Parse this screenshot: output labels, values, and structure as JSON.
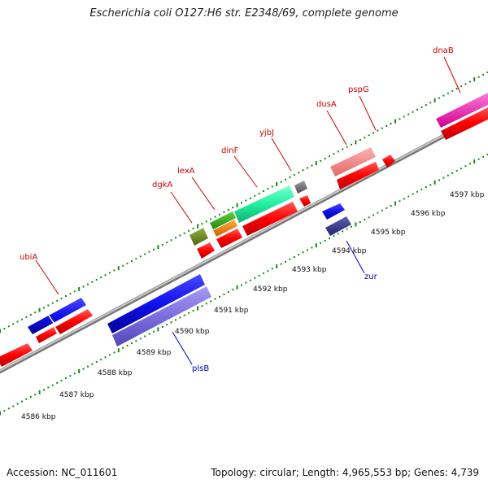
{
  "title": "Escherichia coli O127:H6 str. E2348/69, complete genome",
  "footer": {
    "accession": "Accession: NC_011601",
    "stats": "Topology: circular; Length: 4,965,553 bp; Genes: 4,739"
  },
  "colors": {
    "forward_label": "#d00000",
    "reverse_label": "#0000c0",
    "tick": "#138a13",
    "backbone": "#8c8c8c"
  },
  "scale": {
    "unit": "kbp",
    "labels": [
      "4586 kbp",
      "4587 kbp",
      "4588 kbp",
      "4589 kbp",
      "4590 kbp",
      "4591 kbp",
      "4592 kbp",
      "4593 kbp",
      "4594 kbp",
      "4595 kbp",
      "4596 kbp",
      "4597 kbp"
    ]
  },
  "gene_labels": [
    {
      "name": "ubiA",
      "strand": "forward"
    },
    {
      "name": "dgkA",
      "strand": "forward"
    },
    {
      "name": "lexA",
      "strand": "forward"
    },
    {
      "name": "dinF",
      "strand": "forward"
    },
    {
      "name": "yjbJ",
      "strand": "forward"
    },
    {
      "name": "dusA",
      "strand": "forward"
    },
    {
      "name": "pspG",
      "strand": "forward"
    },
    {
      "name": "dnaB",
      "strand": "forward"
    },
    {
      "name": "plsB",
      "strand": "reverse"
    },
    {
      "name": "zur",
      "strand": "reverse"
    }
  ]
}
